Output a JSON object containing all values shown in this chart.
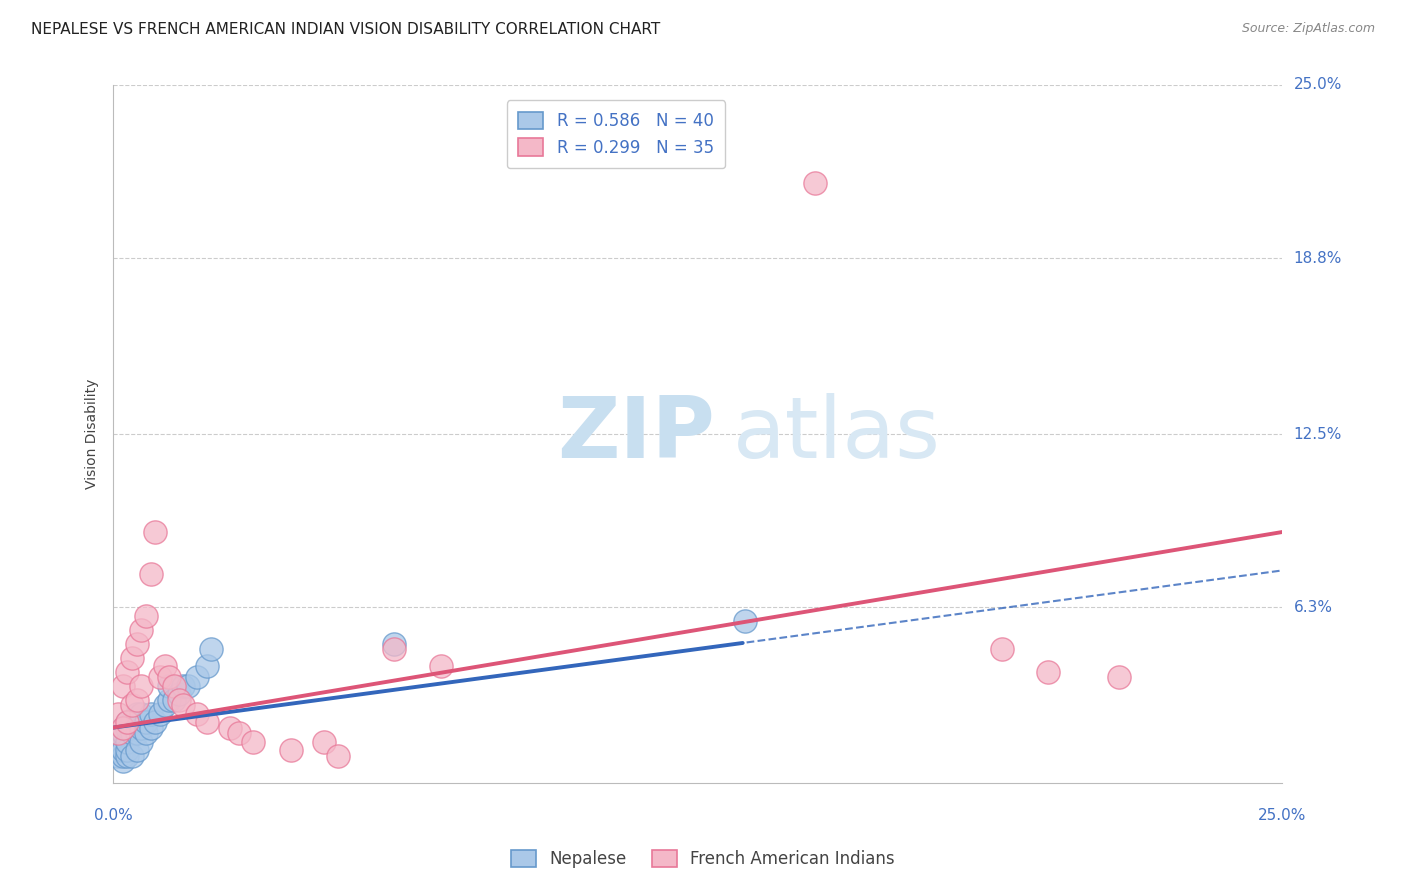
{
  "title": "NEPALESE VS FRENCH AMERICAN INDIAN VISION DISABILITY CORRELATION CHART",
  "source": "Source: ZipAtlas.com",
  "ylabel": "Vision Disability",
  "xlim": [
    0.0,
    0.25
  ],
  "ylim": [
    0.0,
    0.25
  ],
  "ytick_labels": [
    "6.3%",
    "12.5%",
    "18.8%",
    "25.0%"
  ],
  "ytick_positions": [
    0.063,
    0.125,
    0.188,
    0.25
  ],
  "watermark_zip": "ZIP",
  "watermark_atlas": "atlas",
  "nepalese_fill_color": "#aac8e8",
  "nepalese_edge_color": "#6699cc",
  "french_fill_color": "#f4b8c8",
  "french_edge_color": "#e87898",
  "nepalese_line_color": "#3366bb",
  "french_line_color": "#dd5577",
  "background_color": "#ffffff",
  "grid_color": "#cccccc",
  "title_fontsize": 11,
  "axis_label_fontsize": 10,
  "tick_fontsize": 11,
  "legend_fontsize": 12,
  "nepalese_x": [
    0.001,
    0.001,
    0.001,
    0.002,
    0.002,
    0.002,
    0.002,
    0.002,
    0.003,
    0.003,
    0.003,
    0.003,
    0.003,
    0.004,
    0.004,
    0.004,
    0.005,
    0.005,
    0.005,
    0.006,
    0.006,
    0.006,
    0.007,
    0.007,
    0.008,
    0.008,
    0.009,
    0.01,
    0.011,
    0.012,
    0.012,
    0.013,
    0.014,
    0.015,
    0.016,
    0.018,
    0.02,
    0.021,
    0.06,
    0.135
  ],
  "nepalese_y": [
    0.01,
    0.012,
    0.015,
    0.008,
    0.01,
    0.012,
    0.018,
    0.02,
    0.01,
    0.012,
    0.015,
    0.02,
    0.022,
    0.01,
    0.018,
    0.022,
    0.012,
    0.018,
    0.025,
    0.015,
    0.02,
    0.025,
    0.018,
    0.022,
    0.02,
    0.025,
    0.022,
    0.025,
    0.028,
    0.03,
    0.035,
    0.03,
    0.032,
    0.035,
    0.035,
    0.038,
    0.042,
    0.048,
    0.05,
    0.058
  ],
  "french_x": [
    0.001,
    0.001,
    0.002,
    0.002,
    0.003,
    0.003,
    0.004,
    0.004,
    0.005,
    0.005,
    0.006,
    0.006,
    0.007,
    0.008,
    0.009,
    0.01,
    0.011,
    0.012,
    0.013,
    0.014,
    0.015,
    0.018,
    0.02,
    0.025,
    0.027,
    0.03,
    0.038,
    0.045,
    0.048,
    0.06,
    0.07,
    0.15,
    0.19,
    0.2,
    0.215
  ],
  "french_y": [
    0.018,
    0.025,
    0.02,
    0.035,
    0.022,
    0.04,
    0.028,
    0.045,
    0.03,
    0.05,
    0.035,
    0.055,
    0.06,
    0.075,
    0.09,
    0.038,
    0.042,
    0.038,
    0.035,
    0.03,
    0.028,
    0.025,
    0.022,
    0.02,
    0.018,
    0.015,
    0.012,
    0.015,
    0.01,
    0.048,
    0.042,
    0.215,
    0.048,
    0.04,
    0.038
  ]
}
